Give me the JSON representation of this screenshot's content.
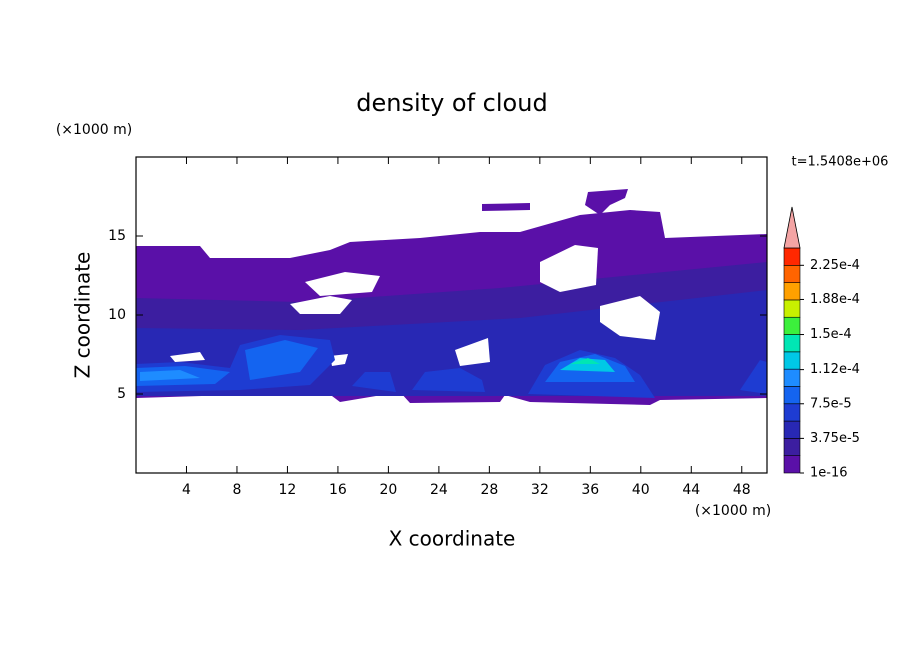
{
  "chart_data": {
    "type": "contour",
    "title": "density of cloud",
    "xlabel": "X coordinate",
    "ylabel": "Z coordinate",
    "xunit": "(×1000 m)",
    "yunit": "(×1000 m)",
    "time_label": "t=1.5408e+06",
    "xlim": [
      0,
      50
    ],
    "ylim": [
      0,
      20
    ],
    "xticks": [
      4,
      8,
      12,
      16,
      20,
      24,
      28,
      32,
      36,
      40,
      44,
      48
    ],
    "yticks": [
      5,
      10,
      15
    ],
    "colorbar": {
      "levels": [
        1e-16,
        1.875e-05,
        3.75e-05,
        5.625e-05,
        7.5e-05,
        9.375e-05,
        0.0001125,
        0.00013125,
        0.00015,
        0.00016875,
        0.0001875,
        0.00020625,
        0.000225,
        0.00024375
      ],
      "colors": [
        "#5a10a8",
        "#3c1ea0",
        "#2828b4",
        "#1e3cd2",
        "#1464f0",
        "#1e8cff",
        "#00c8e6",
        "#00e6b4",
        "#3cf03c",
        "#c8f000",
        "#ffa000",
        "#ff6400",
        "#ff2800"
      ],
      "extend_color": "#f4a4a4",
      "ticks": [
        1e-16,
        {
          "value": 3.75e-05,
          "label": "3.75e-5"
        },
        {
          "value": 7.5e-05,
          "label": "7.5e-5"
        },
        {
          "value": 0.000112,
          "label": "1.12e-4"
        },
        {
          "value": 0.00015,
          "label": "1.5e-4"
        },
        {
          "value": 0.000188,
          "label": "1.88e-4"
        },
        {
          "value": 0.000225,
          "label": "2.25e-4"
        }
      ]
    }
  }
}
